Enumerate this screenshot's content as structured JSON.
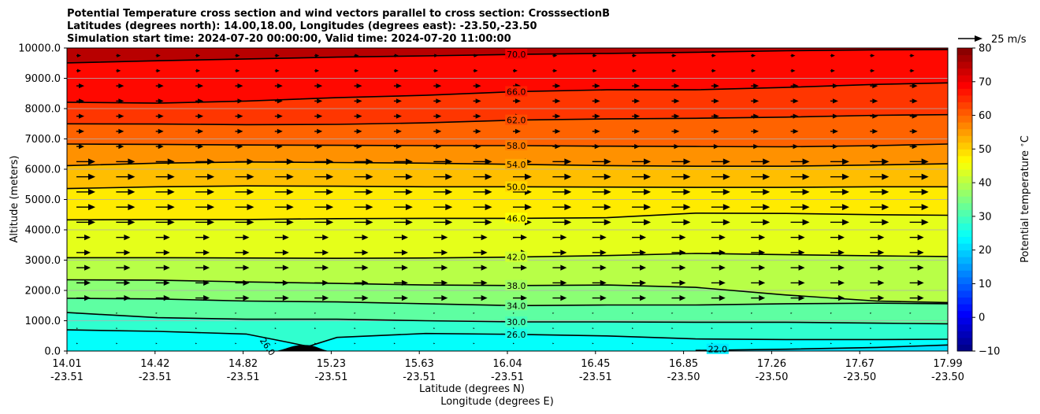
{
  "chart_data": {
    "type": "heatmap",
    "title_lines": [
      "Potential Temperature cross section and wind vectors parallel to cross section: CrosssectionB",
      "Latitudes (degrees north): 14.00,18.00, Longitudes (degrees east): -23.50,-23.50",
      "Simulation start time: 2024-07-20 00:00:00, Valid time: 2024-07-20 11:00:00"
    ],
    "ylabel": "Altitude (meters)",
    "xlabel_lines": [
      "Latitude (degrees N)",
      "Longitude (degrees E)"
    ],
    "y_ticks": [
      "0.0",
      "1000.0",
      "2000.0",
      "3000.0",
      "4000.0",
      "5000.0",
      "6000.0",
      "7000.0",
      "8000.0",
      "9000.0",
      "10000.0"
    ],
    "ylim": [
      0,
      10000
    ],
    "x_ticks": [
      {
        "lat": "14.01",
        "lon": "-23.51"
      },
      {
        "lat": "14.42",
        "lon": "-23.51"
      },
      {
        "lat": "14.82",
        "lon": "-23.51"
      },
      {
        "lat": "15.23",
        "lon": "-23.51"
      },
      {
        "lat": "15.63",
        "lon": "-23.51"
      },
      {
        "lat": "16.04",
        "lon": "-23.51"
      },
      {
        "lat": "16.45",
        "lon": "-23.51"
      },
      {
        "lat": "16.85",
        "lon": "-23.50"
      },
      {
        "lat": "17.26",
        "lon": "-23.50"
      },
      {
        "lat": "17.67",
        "lon": "-23.50"
      },
      {
        "lat": "17.99",
        "lon": "-23.50"
      }
    ],
    "xlim": [
      14.01,
      17.99
    ],
    "colorbar": {
      "label": "Potential temperature $^\\circ$C",
      "ticks": [
        "−10",
        "0",
        "10",
        "20",
        "30",
        "40",
        "50",
        "60",
        "70",
        "80"
      ],
      "range": [
        -10,
        80
      ]
    },
    "contours": [
      {
        "label": "22.0",
        "level": 22,
        "points": [
          [
            16.85,
            20
          ],
          [
            17.26,
            60
          ],
          [
            17.67,
            120
          ],
          [
            17.99,
            200
          ]
        ]
      },
      {
        "label": "26.0",
        "level": 26,
        "points": [
          [
            14.01,
            700
          ],
          [
            14.42,
            650
          ],
          [
            14.82,
            560
          ],
          [
            15.0,
            300
          ],
          [
            15.1,
            150
          ],
          [
            15.23,
            450
          ],
          [
            15.63,
            580
          ],
          [
            16.04,
            550
          ],
          [
            16.45,
            500
          ],
          [
            16.85,
            400
          ],
          [
            17.26,
            380
          ],
          [
            17.67,
            380
          ],
          [
            17.99,
            390
          ]
        ]
      },
      {
        "label": "30.0",
        "level": 30,
        "points": [
          [
            14.01,
            1270
          ],
          [
            14.42,
            1100
          ],
          [
            14.82,
            1050
          ],
          [
            15.23,
            1050
          ],
          [
            15.63,
            1000
          ],
          [
            16.04,
            960
          ],
          [
            16.45,
            960
          ],
          [
            16.85,
            950
          ],
          [
            17.26,
            950
          ],
          [
            17.67,
            920
          ],
          [
            17.99,
            900
          ]
        ]
      },
      {
        "label": "34.0",
        "level": 34,
        "points": [
          [
            14.01,
            1740
          ],
          [
            14.42,
            1720
          ],
          [
            14.82,
            1650
          ],
          [
            15.23,
            1620
          ],
          [
            15.63,
            1560
          ],
          [
            16.04,
            1500
          ],
          [
            16.45,
            1520
          ],
          [
            16.85,
            1520
          ],
          [
            17.26,
            1560
          ],
          [
            17.67,
            1580
          ],
          [
            17.99,
            1560
          ]
        ]
      },
      {
        "label": "38.0",
        "level": 38,
        "points": [
          [
            14.01,
            2350
          ],
          [
            14.42,
            2340
          ],
          [
            14.82,
            2280
          ],
          [
            15.23,
            2230
          ],
          [
            15.63,
            2180
          ],
          [
            16.04,
            2160
          ],
          [
            16.45,
            2180
          ],
          [
            16.85,
            2100
          ],
          [
            17.26,
            1850
          ],
          [
            17.67,
            1650
          ],
          [
            17.99,
            1600
          ]
        ]
      },
      {
        "label": "42.0",
        "level": 42,
        "points": [
          [
            14.01,
            3080
          ],
          [
            14.42,
            3080
          ],
          [
            14.82,
            3070
          ],
          [
            15.23,
            3060
          ],
          [
            15.63,
            3070
          ],
          [
            16.04,
            3100
          ],
          [
            16.45,
            3150
          ],
          [
            16.85,
            3220
          ],
          [
            17.26,
            3180
          ],
          [
            17.67,
            3140
          ],
          [
            17.99,
            3120
          ]
        ]
      },
      {
        "label": "46.0",
        "level": 46,
        "points": [
          [
            14.01,
            4330
          ],
          [
            14.42,
            4340
          ],
          [
            14.82,
            4340
          ],
          [
            15.23,
            4370
          ],
          [
            15.63,
            4380
          ],
          [
            16.04,
            4380
          ],
          [
            16.45,
            4400
          ],
          [
            16.85,
            4550
          ],
          [
            17.26,
            4540
          ],
          [
            17.67,
            4500
          ],
          [
            17.99,
            4480
          ]
        ]
      },
      {
        "label": "50.0",
        "level": 50,
        "points": [
          [
            14.01,
            5360
          ],
          [
            14.42,
            5420
          ],
          [
            14.82,
            5450
          ],
          [
            15.23,
            5440
          ],
          [
            15.63,
            5420
          ],
          [
            16.04,
            5420
          ],
          [
            16.45,
            5410
          ],
          [
            16.85,
            5400
          ],
          [
            17.26,
            5400
          ],
          [
            17.67,
            5420
          ],
          [
            17.99,
            5420
          ]
        ]
      },
      {
        "label": "54.0",
        "level": 54,
        "points": [
          [
            14.01,
            6120
          ],
          [
            14.42,
            6200
          ],
          [
            14.82,
            6240
          ],
          [
            15.23,
            6220
          ],
          [
            15.63,
            6200
          ],
          [
            16.04,
            6160
          ],
          [
            16.45,
            6120
          ],
          [
            16.85,
            6100
          ],
          [
            17.26,
            6100
          ],
          [
            17.67,
            6140
          ],
          [
            17.99,
            6180
          ]
        ]
      },
      {
        "label": "58.0",
        "level": 58,
        "points": [
          [
            14.01,
            6830
          ],
          [
            14.42,
            6820
          ],
          [
            14.82,
            6800
          ],
          [
            15.23,
            6790
          ],
          [
            15.63,
            6780
          ],
          [
            16.04,
            6780
          ],
          [
            16.45,
            6760
          ],
          [
            16.85,
            6750
          ],
          [
            17.26,
            6740
          ],
          [
            17.67,
            6780
          ],
          [
            17.99,
            6830
          ]
        ]
      },
      {
        "label": "62.0",
        "level": 62,
        "points": [
          [
            14.01,
            7500
          ],
          [
            14.42,
            7490
          ],
          [
            14.82,
            7470
          ],
          [
            15.23,
            7480
          ],
          [
            15.63,
            7530
          ],
          [
            16.04,
            7620
          ],
          [
            16.45,
            7660
          ],
          [
            16.85,
            7680
          ],
          [
            17.26,
            7720
          ],
          [
            17.67,
            7780
          ],
          [
            17.99,
            7800
          ]
        ]
      },
      {
        "label": "66.0",
        "level": 66,
        "points": [
          [
            14.01,
            8210
          ],
          [
            14.42,
            8180
          ],
          [
            14.82,
            8250
          ],
          [
            15.23,
            8360
          ],
          [
            15.63,
            8440
          ],
          [
            16.04,
            8560
          ],
          [
            16.45,
            8620
          ],
          [
            16.85,
            8620
          ],
          [
            17.26,
            8700
          ],
          [
            17.67,
            8800
          ],
          [
            17.99,
            8850
          ]
        ]
      },
      {
        "label": "70.0",
        "level": 70,
        "points": [
          [
            14.01,
            9510
          ],
          [
            14.42,
            9580
          ],
          [
            14.82,
            9640
          ],
          [
            15.23,
            9700
          ],
          [
            15.63,
            9740
          ],
          [
            16.04,
            9790
          ],
          [
            16.45,
            9820
          ],
          [
            16.85,
            9860
          ],
          [
            17.26,
            9910
          ],
          [
            17.67,
            9940
          ],
          [
            17.99,
            9950
          ]
        ]
      }
    ],
    "terrain_peak": {
      "lat": 15.08,
      "altitude": 200
    },
    "wind_key": {
      "label": "25 m/s",
      "speed": 25
    }
  }
}
